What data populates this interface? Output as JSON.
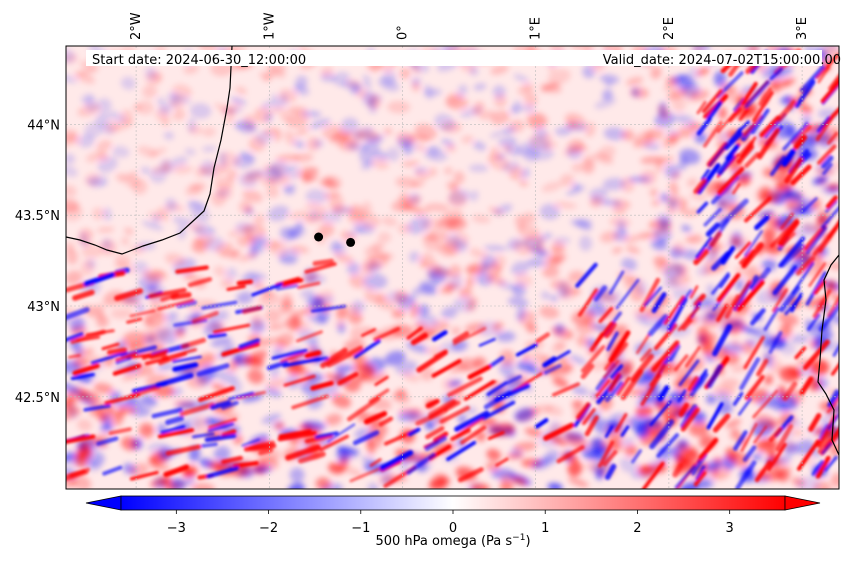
{
  "header": {
    "start_date": "Start date: 2024-06-30_12:00:00",
    "valid_date": "Valid_date: 2024-07-02T15:00:00.00"
  },
  "map": {
    "variable": "500 hPa omega",
    "lon_range": [
      -2.5,
      3.3
    ],
    "lat_range": [
      42.0,
      44.4
    ],
    "lon_ticks": [
      {
        "value": -2,
        "label": "2°W"
      },
      {
        "value": -1,
        "label": "1°W"
      },
      {
        "value": 0,
        "label": "0°"
      },
      {
        "value": 1,
        "label": "1°E"
      },
      {
        "value": 2,
        "label": "2°E"
      },
      {
        "value": 3,
        "label": "3°E"
      }
    ],
    "lat_ticks": [
      {
        "value": 44.0,
        "label": "44°N"
      },
      {
        "value": 43.5,
        "label": "43.5°N"
      },
      {
        "value": 43.0,
        "label": "43°N"
      },
      {
        "value": 42.5,
        "label": "42.5°N"
      }
    ],
    "gridlines": true,
    "markers": [
      {
        "lon": -0.63,
        "lat": 43.38
      },
      {
        "lon": -0.39,
        "lat": 43.35
      }
    ],
    "colors": {
      "negative": "#0000ff",
      "zero": "#ffffff",
      "positive": "#ff0000",
      "coastline": "#000000"
    }
  },
  "colorbar": {
    "label": "500 hPa omega (Pa s",
    "label_sup": "−1",
    "label_end": ")",
    "range": [
      -3.6,
      3.6
    ],
    "ticks": [
      {
        "value": -3,
        "label": "−3"
      },
      {
        "value": -2,
        "label": "−2"
      },
      {
        "value": -1,
        "label": "−1"
      },
      {
        "value": 0,
        "label": "0"
      },
      {
        "value": 1,
        "label": "1"
      },
      {
        "value": 2,
        "label": "2"
      },
      {
        "value": 3,
        "label": "3"
      }
    ],
    "extend": "both"
  }
}
